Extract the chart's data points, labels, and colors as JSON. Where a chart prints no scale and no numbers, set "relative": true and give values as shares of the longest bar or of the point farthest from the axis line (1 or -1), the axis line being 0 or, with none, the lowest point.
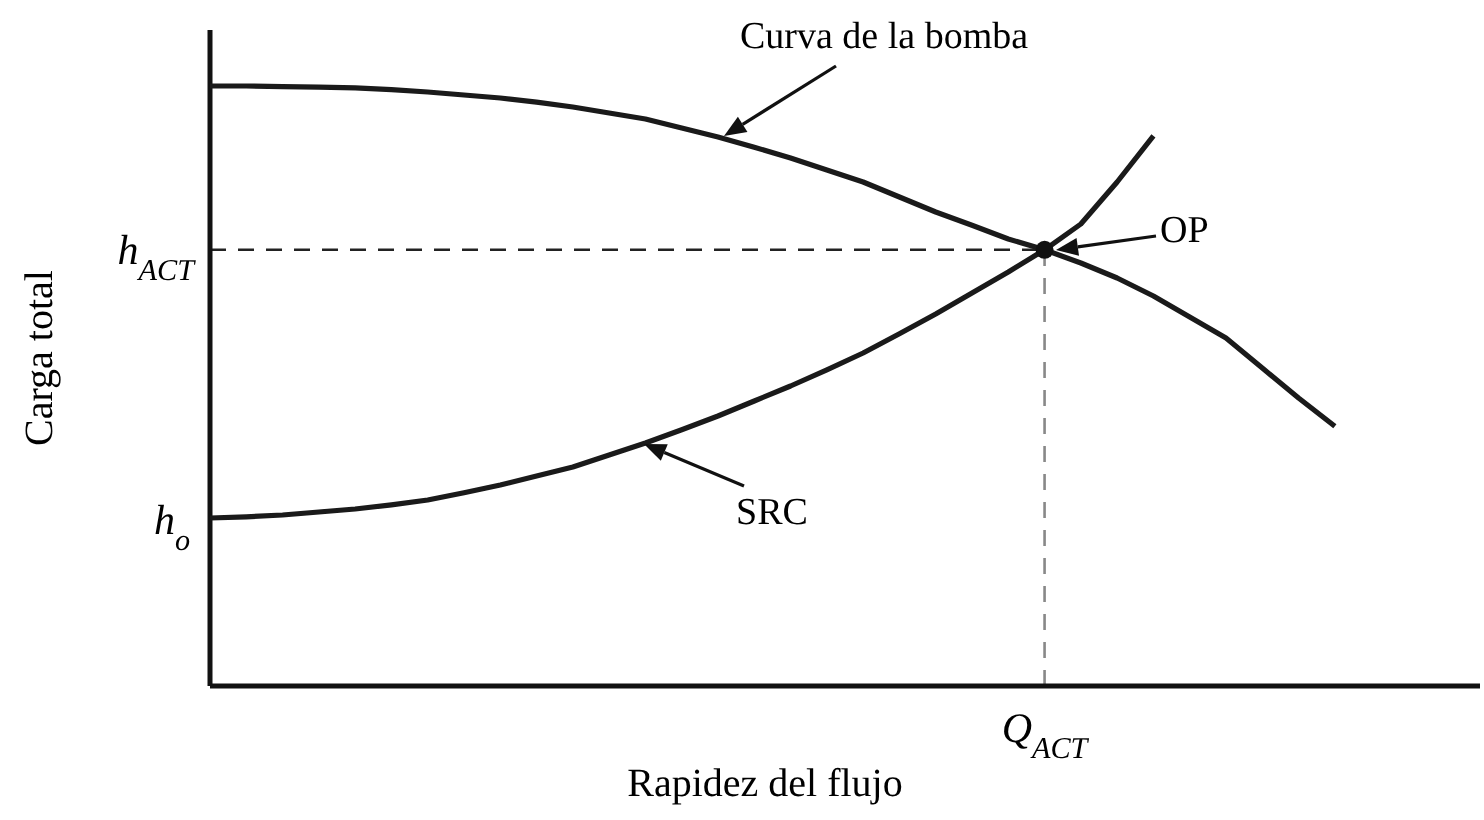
{
  "chart_data": {
    "type": "line",
    "relative": true,
    "xlabel": "Rapidez del flujo",
    "ylabel": "Carga total",
    "categories": [
      null,
      null,
      null,
      null,
      null,
      null,
      null,
      null,
      null,
      null,
      null,
      null,
      null,
      null,
      null,
      null,
      null,
      null,
      null,
      null,
      null,
      null,
      null,
      null,
      null,
      null,
      null,
      null,
      null,
      null,
      null,
      null,
      null,
      null,
      null,
      null
    ],
    "series": [
      {
        "color": "#1a1a1a",
        "values": [
          1,
          1,
          0.999,
          0.998,
          0.997,
          0.994,
          0.99,
          0.985,
          0.98,
          0.973,
          0.965,
          0.955,
          0.945,
          0.93,
          0.915,
          0.898,
          0.88,
          0.86,
          0.84,
          0.815,
          0.79,
          0.768,
          0.745,
          0.727,
          0.705,
          0.68,
          0.65,
          0.615,
          0.58,
          0.53,
          0.48,
          0.433,
          null,
          null,
          null,
          null
        ]
      },
      {
        "color": "#1a1a1a",
        "values": [
          0.28,
          0.282,
          0.285,
          0.29,
          0.295,
          0.302,
          0.31,
          0.322,
          0.335,
          0.35,
          0.365,
          0.385,
          0.405,
          0.427,
          0.45,
          0.475,
          0.5,
          0.527,
          0.555,
          0.587,
          0.62,
          0.655,
          0.69,
          0.727,
          0.77,
          0.84,
          0.917,
          null,
          null,
          null,
          null,
          null,
          null,
          null,
          null,
          null
        ]
      }
    ],
    "ref_lines": [
      {
        "axis": "y",
        "value": 0.727,
        "label": "h$_{ACT}$",
        "line_style": "dashed"
      }
    ],
    "annotations": [
      "Curva de la bomba",
      "SRC",
      "OP",
      "h$_{o}$",
      "Q$_{ACT}$"
    ]
  }
}
